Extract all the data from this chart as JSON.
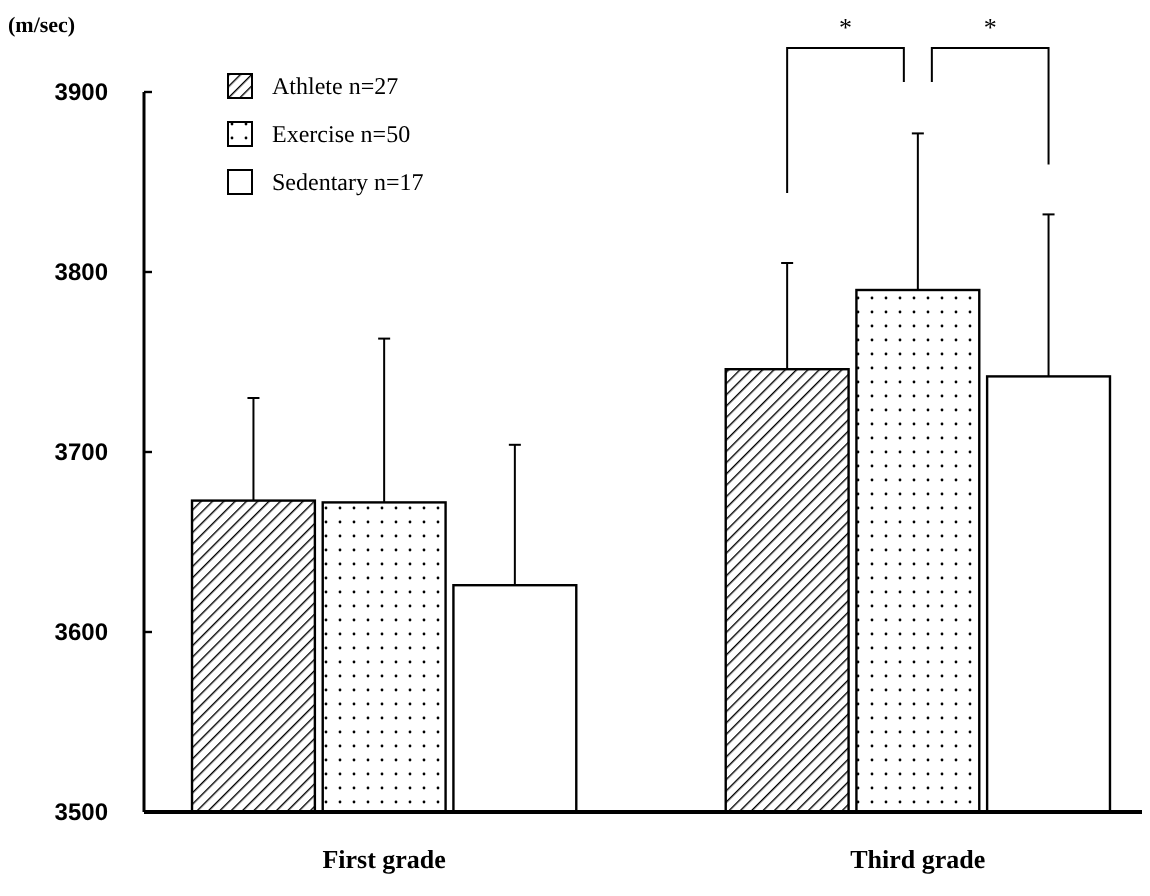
{
  "chart_data": {
    "type": "bar",
    "ylabel": "(m/sec)",
    "categories": [
      "First grade",
      "Third grade"
    ],
    "series": [
      {
        "name": "Athlete n=27",
        "color": "#000000",
        "values": [
          3673,
          3746
        ],
        "errors": [
          [
            3673,
            3730
          ],
          [
            3746,
            3805
          ]
        ]
      },
      {
        "name": "Exercise n=50",
        "color": "#000000",
        "values": [
          3672,
          3790
        ],
        "errors": [
          [
            3672,
            3763
          ],
          [
            3790,
            3877
          ]
        ]
      },
      {
        "name": "Sedentary n=17",
        "color": "#ffffff",
        "values": [
          3626,
          3742
        ],
        "errors": [
          [
            3626,
            3704
          ],
          [
            3742,
            3832
          ]
        ]
      }
    ],
    "ylim": [
      3500,
      3900
    ],
    "yticks": [
      3500,
      3600,
      3700,
      3800,
      3900
    ],
    "legend": "top left",
    "annotations": [
      "*",
      "*"
    ]
  }
}
